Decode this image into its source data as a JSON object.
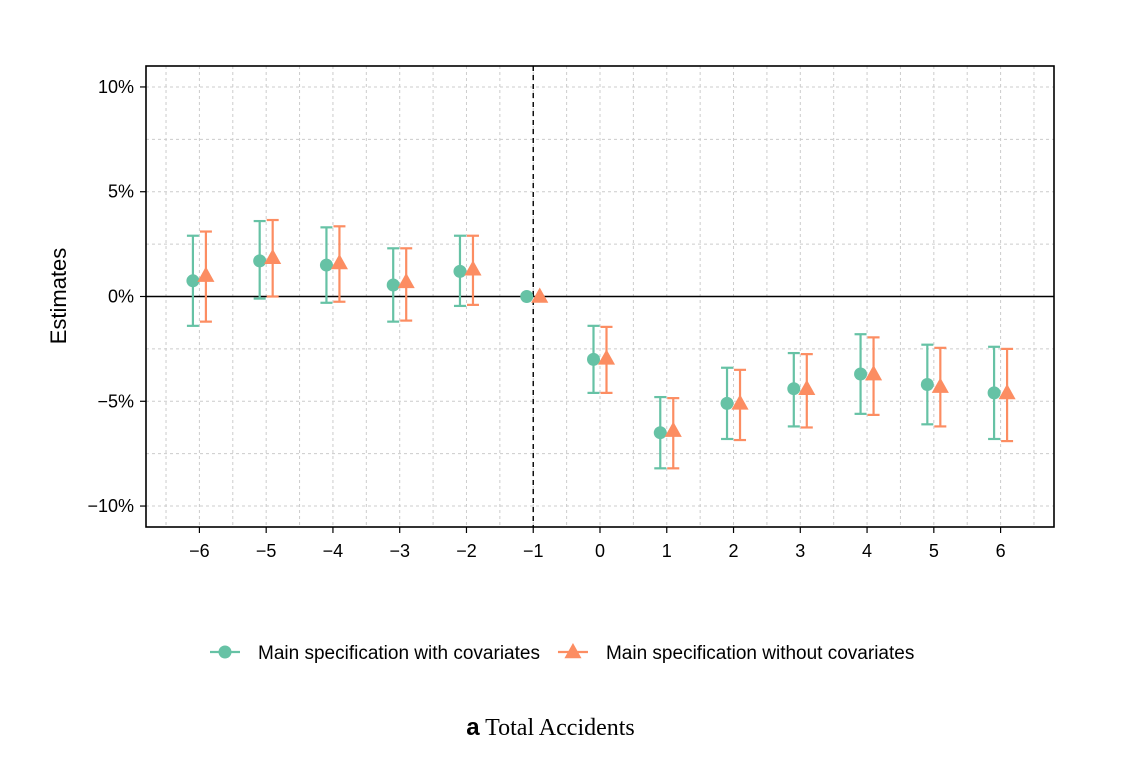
{
  "caption": {
    "letter": "a",
    "text": "Total Accidents"
  },
  "chart_data": {
    "type": "scatter",
    "ylabel": "Estimates",
    "xlabel": "",
    "title": "",
    "x": [
      -6,
      -5,
      -4,
      -3,
      -2,
      -1,
      0,
      1,
      2,
      3,
      4,
      5,
      6
    ],
    "x_tick_labels": [
      "−6",
      "−5",
      "−4",
      "−3",
      "−2",
      "−1",
      "0",
      "1",
      "2",
      "3",
      "4",
      "5",
      "6"
    ],
    "xlim": [
      -6.8,
      6.8
    ],
    "ylim": [
      -11,
      11
    ],
    "y_ticks": [
      10,
      5,
      0,
      -5,
      -10
    ],
    "y_tick_labels": [
      "10%",
      "5%",
      "0%",
      "−5%",
      "−10%"
    ],
    "grid": true,
    "reference_line_y": 0,
    "reference_line_x": -1,
    "legend_position": "bottom",
    "series": [
      {
        "name": "Main specification with covariates",
        "marker": "circle",
        "color": "#66C2A5",
        "estimates": [
          0.75,
          1.7,
          1.5,
          0.55,
          1.2,
          0.0,
          -3.0,
          -6.5,
          -5.1,
          -4.4,
          -3.7,
          -4.2,
          -4.6
        ],
        "ci_low": [
          -1.4,
          -0.1,
          -0.3,
          -1.2,
          -0.45,
          null,
          -4.6,
          -8.2,
          -6.8,
          -6.2,
          -5.6,
          -6.1,
          -6.8
        ],
        "ci_high": [
          2.9,
          3.6,
          3.3,
          2.3,
          2.9,
          null,
          -1.4,
          -4.8,
          -3.4,
          -2.7,
          -1.8,
          -2.3,
          -2.4
        ]
      },
      {
        "name": "Main specification without covariates",
        "marker": "triangle",
        "color": "#FC8D62",
        "estimates": [
          1.0,
          1.85,
          1.6,
          0.7,
          1.3,
          0.0,
          -2.95,
          -6.4,
          -5.1,
          -4.4,
          -3.7,
          -4.3,
          -4.6
        ],
        "ci_low": [
          -1.2,
          0.0,
          -0.25,
          -1.15,
          -0.4,
          null,
          -4.6,
          -8.2,
          -6.85,
          -6.25,
          -5.65,
          -6.2,
          -6.9
        ],
        "ci_high": [
          3.1,
          3.65,
          3.35,
          2.3,
          2.9,
          null,
          -1.45,
          -4.85,
          -3.5,
          -2.75,
          -1.95,
          -2.45,
          -2.5
        ]
      }
    ]
  }
}
